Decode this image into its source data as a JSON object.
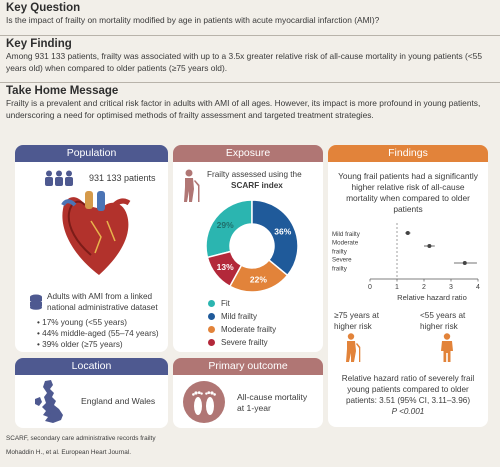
{
  "key_question": {
    "heading": "Key Question",
    "text": "Is the impact of frailty on mortality modified by age in patients with acute myocardial infarction (AMI)?"
  },
  "key_finding": {
    "heading": "Key Finding",
    "text": "Among 931 133 patients, frailty was associated with up to a 3.5x greater relative risk of all-cause mortality in young patients (<55 years old) when compared to older patients (≥75 years old)."
  },
  "take_home": {
    "heading": "Take Home Message",
    "text": "Frailty is a prevalent and critical risk factor in adults with AMI of all ages. However, its impact is more profound in young patients, underscoring a need for optimised methods of frailty assessment and targeted treatment strategies."
  },
  "population": {
    "heading": "Population",
    "count": "931 133 patients",
    "desc": "Adults with AMI from a linked national administrative dataset",
    "bullets": [
      "• 17% young (<55 years)",
      "• 44% middle-aged (55–74 years)",
      "• 39% older (≥75 years)"
    ]
  },
  "exposure": {
    "heading": "Exposure",
    "desc_line1": "Frailty assessed using the",
    "desc_line2": "SCARF index",
    "legend": [
      {
        "label": "Fit",
        "color": "#2bb5b0"
      },
      {
        "label": "Mild frailty",
        "color": "#1f5a9a"
      },
      {
        "label": "Moderate frailty",
        "color": "#e2833a"
      },
      {
        "label": "Severe frailty",
        "color": "#b3283a"
      }
    ]
  },
  "chart_data": {
    "type": "pie",
    "categories": [
      "Fit",
      "Mild frailty",
      "Moderate frailty",
      "Severe frailty"
    ],
    "values": [
      29,
      36,
      22,
      13
    ],
    "labels": [
      "29%",
      "36%",
      "22%",
      "13%"
    ],
    "colors": [
      "#2bb5b0",
      "#1f5a9a",
      "#e2833a",
      "#b3283a"
    ]
  },
  "findings": {
    "heading": "Findings",
    "text_lines": [
      "Young frail patients had a significantly",
      "higher relative risk of all-cause",
      "mortality when compared to older",
      "patients"
    ],
    "forest": {
      "row_labels": [
        [
          "Mild frailty"
        ],
        [
          "Moderate",
          "frailty"
        ],
        [
          "Severe",
          "frailty"
        ]
      ],
      "ticks": [
        "0",
        "1",
        "2",
        "3",
        "4"
      ],
      "xlabel": "Relative hazard ratio",
      "xlim": [
        0,
        4
      ],
      "estimates": [
        {
          "hr": 1.4,
          "lo": 1.3,
          "hi": 1.5
        },
        {
          "hr": 2.2,
          "lo": 2.0,
          "hi": 2.4
        },
        {
          "hr": 3.51,
          "lo": 3.11,
          "hi": 3.96
        }
      ]
    },
    "left_label": [
      "≥75 years at",
      "higher risk"
    ],
    "right_label": [
      "<55 years at",
      "higher risk"
    ],
    "summary_lines": [
      "Relative hazard ratio of severely frail",
      "young patients compared to older",
      "patients: 3.51 (95% CI, 3.11–3.96)",
      "P <0.001"
    ]
  },
  "location": {
    "heading": "Location",
    "text": "England and Wales"
  },
  "outcome": {
    "heading": "Primary outcome",
    "line1": "All-cause mortality",
    "line2": "at 1-year"
  },
  "footnote": "SCARF, secondary care administrative records frailty",
  "citation": "Mohaddin H., et al. European Heart Journal."
}
